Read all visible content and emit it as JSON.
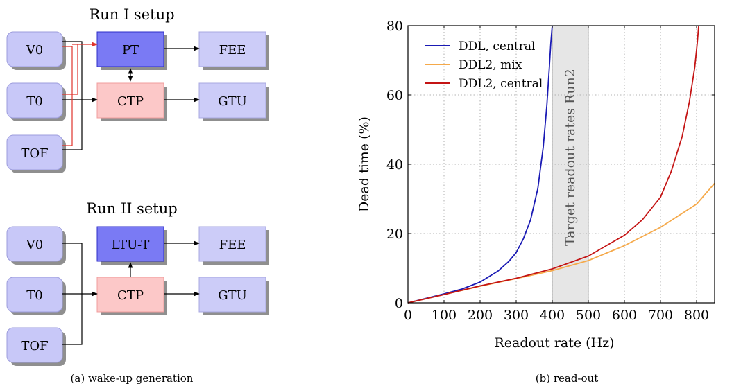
{
  "left_panel": {
    "caption": "(a) wake-up generation",
    "run1": {
      "title": "Run I setup",
      "inputs": [
        "V0",
        "T0",
        "TOF"
      ],
      "trigger_box": "PT",
      "ctp_box": "CTP",
      "outputs": [
        "FEE",
        "GTU"
      ]
    },
    "run2": {
      "title": "Run II setup",
      "inputs": [
        "V0",
        "T0",
        "TOF"
      ],
      "trigger_box": "LTU-T",
      "ctp_box": "CTP",
      "outputs": [
        "FEE",
        "GTU"
      ]
    },
    "colors": {
      "input_fill": "#c8c8f8",
      "input_stroke": "#9c9cdc",
      "trigger_fill": "#7a7af4",
      "trigger_stroke": "#2e2ec8",
      "ctp_fill": "#fcc8c8",
      "ctp_stroke": "#f09c9c",
      "output_fill": "#ccccf8",
      "output_stroke": "#a8a8e0",
      "shadow": "#8f8f8f",
      "red_wire": "#e0342c"
    }
  },
  "right_panel": {
    "caption": "(b) read-out",
    "chart_data": {
      "type": "line",
      "xlabel": "Readout rate (Hz)",
      "ylabel": "Dead time (%)",
      "xlim": [
        0,
        850
      ],
      "ylim": [
        0,
        80
      ],
      "xticks": [
        0,
        100,
        200,
        300,
        400,
        500,
        600,
        700,
        800
      ],
      "yticks": [
        0,
        20,
        40,
        60,
        80
      ],
      "grid": true,
      "legend_position": "top-left",
      "band": {
        "x": [
          400,
          500
        ],
        "label": "Target readout rates Run2",
        "color": "#e6e6e6"
      },
      "series": [
        {
          "name": "DDL, central",
          "color": "#1a1ab4",
          "x": [
            0,
            50,
            100,
            150,
            200,
            250,
            280,
            300,
            320,
            340,
            360,
            375,
            385,
            392,
            396,
            400
          ],
          "y": [
            0,
            1.3,
            2.6,
            4.0,
            6.0,
            9.2,
            12.0,
            14.5,
            18.5,
            24.0,
            33.0,
            45.0,
            57.0,
            68.0,
            75.0,
            80.0
          ]
        },
        {
          "name": "DDL2, mix",
          "color": "#f5a94a",
          "x": [
            0,
            100,
            200,
            300,
            400,
            500,
            600,
            700,
            800,
            850
          ],
          "y": [
            0,
            2.4,
            4.8,
            7.0,
            9.3,
            12.2,
            16.5,
            21.8,
            28.5,
            34.5
          ]
        },
        {
          "name": "DDL2, central",
          "color": "#c41414",
          "x": [
            0,
            100,
            200,
            300,
            400,
            500,
            600,
            650,
            700,
            730,
            760,
            780,
            795,
            802,
            806
          ],
          "y": [
            0,
            2.4,
            4.9,
            7.1,
            9.8,
            13.5,
            19.5,
            24.0,
            30.5,
            38.0,
            48.0,
            58.0,
            68.0,
            75.0,
            80.0
          ]
        }
      ]
    }
  }
}
